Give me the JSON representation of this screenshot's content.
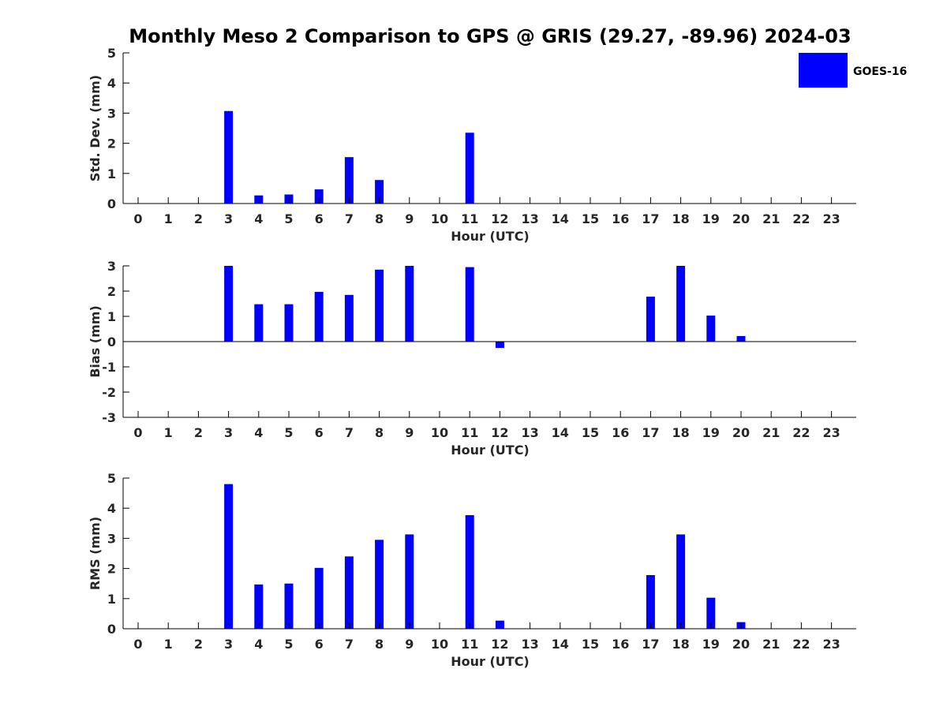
{
  "title": "Monthly Meso 2 Comparison to GPS @ GRIS (29.27, -89.96) 2024-03",
  "legend": {
    "label": "GOES-16",
    "color": "#0000ff",
    "placement": "top-right"
  },
  "chart_data": [
    {
      "type": "bar",
      "categories": [
        "0",
        "1",
        "2",
        "3",
        "4",
        "5",
        "6",
        "7",
        "8",
        "9",
        "10",
        "11",
        "12",
        "13",
        "14",
        "15",
        "16",
        "17",
        "18",
        "19",
        "20",
        "21",
        "22",
        "23"
      ],
      "series": [
        {
          "name": "GOES-16",
          "values": [
            0,
            0,
            0,
            3.07,
            0.27,
            0.3,
            0.47,
            1.54,
            0.78,
            0,
            0,
            2.35,
            0,
            0,
            0,
            0,
            0,
            0,
            0,
            0,
            0,
            0,
            0,
            0
          ]
        }
      ],
      "xlabel": "Hour (UTC)",
      "ylabel": "Std. Dev. (mm)",
      "ylim": [
        0,
        5
      ],
      "yticks": [
        "0",
        "1",
        "2",
        "3",
        "4",
        "5"
      ],
      "grid": false,
      "color": "#0000ff"
    },
    {
      "type": "bar",
      "categories": [
        "0",
        "1",
        "2",
        "3",
        "4",
        "5",
        "6",
        "7",
        "8",
        "9",
        "10",
        "11",
        "12",
        "13",
        "14",
        "15",
        "16",
        "17",
        "18",
        "19",
        "20",
        "21",
        "22",
        "23"
      ],
      "series": [
        {
          "name": "GOES-16",
          "values": [
            0,
            0,
            0,
            3.0,
            1.48,
            1.48,
            1.97,
            1.85,
            2.85,
            3.0,
            0,
            2.95,
            -0.25,
            0,
            0,
            0,
            0,
            1.78,
            3.0,
            1.03,
            0.22,
            0,
            0,
            0
          ]
        }
      ],
      "xlabel": "Hour (UTC)",
      "ylabel": "Bias (mm)",
      "ylim": [
        -3,
        3
      ],
      "yticks": [
        "-3",
        "-2",
        "-1",
        "0",
        "1",
        "2",
        "3"
      ],
      "grid": false,
      "color": "#0000ff"
    },
    {
      "type": "bar",
      "categories": [
        "0",
        "1",
        "2",
        "3",
        "4",
        "5",
        "6",
        "7",
        "8",
        "9",
        "10",
        "11",
        "12",
        "13",
        "14",
        "15",
        "16",
        "17",
        "18",
        "19",
        "20",
        "21",
        "22",
        "23"
      ],
      "series": [
        {
          "name": "GOES-16",
          "values": [
            0,
            0,
            0,
            4.8,
            1.47,
            1.5,
            2.02,
            2.4,
            2.95,
            3.13,
            0,
            3.77,
            0.27,
            0,
            0,
            0,
            0,
            1.78,
            3.13,
            1.03,
            0.22,
            0,
            0,
            0
          ]
        }
      ],
      "xlabel": "Hour (UTC)",
      "ylabel": "RMS (mm)",
      "ylim": [
        0,
        5
      ],
      "yticks": [
        "0",
        "1",
        "2",
        "3",
        "4",
        "5"
      ],
      "grid": false,
      "color": "#0000ff"
    }
  ]
}
